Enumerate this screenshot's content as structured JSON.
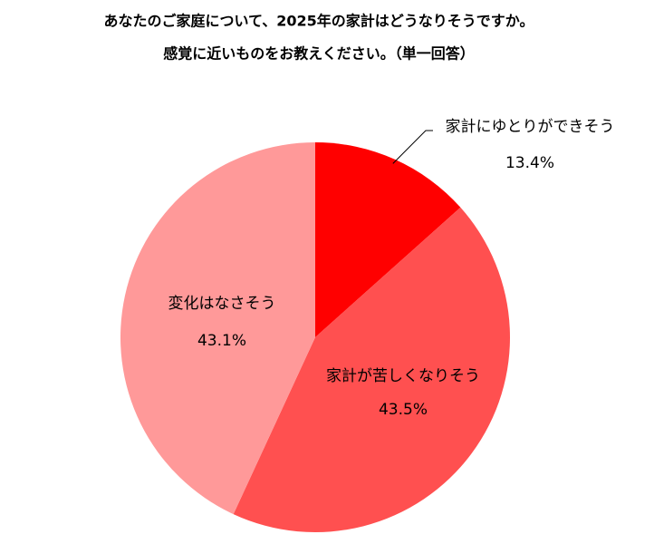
{
  "chart_data": {
    "type": "pie",
    "title": "あなたのご家庭について、2025年の家計はどうなりそうですか。",
    "subtitle": "感覚に近いものをお教えください。（単一回答）",
    "categories": [
      "家計にゆとりができそう",
      "家計が苦しくなりそう",
      "変化はなさそう"
    ],
    "values": [
      13.4,
      43.5,
      43.1
    ],
    "value_labels": [
      "13.4%",
      "43.5%",
      "43.1%"
    ],
    "colors": [
      "#ff0000",
      "#ff5050",
      "#ff9999"
    ]
  }
}
